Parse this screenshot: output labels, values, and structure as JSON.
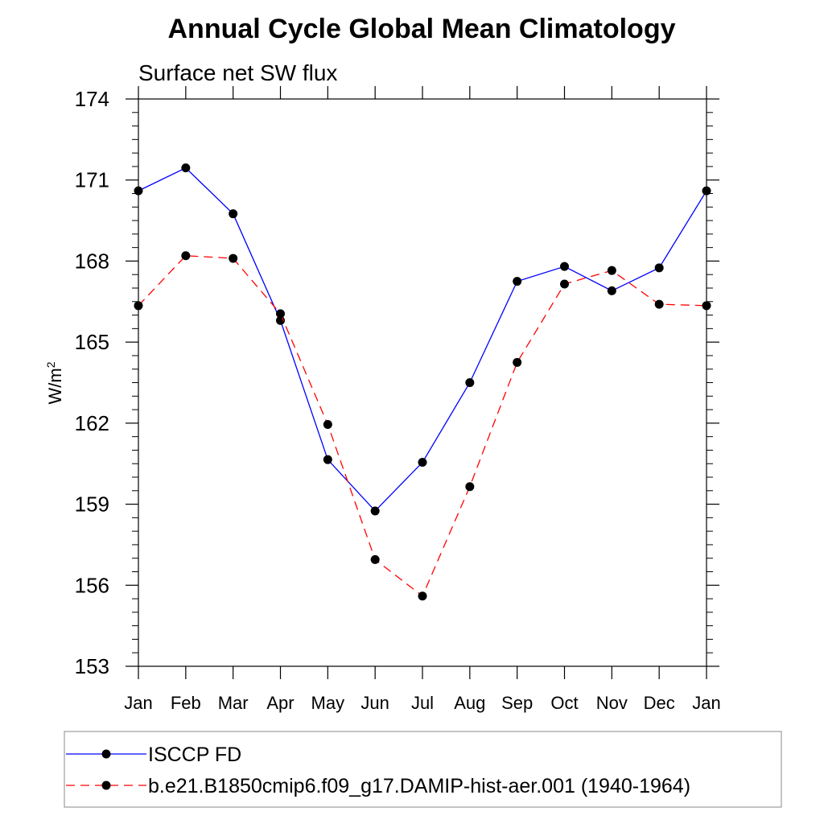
{
  "chart_data": {
    "type": "line",
    "title": "Annual Cycle Global Mean Climatology",
    "subtitle": "Surface net SW flux",
    "ylabel": "W/m",
    "ylabel_superscript": "2",
    "xlabel": "",
    "categories": [
      "Jan",
      "Feb",
      "Mar",
      "Apr",
      "May",
      "Jun",
      "Jul",
      "Aug",
      "Sep",
      "Oct",
      "Nov",
      "Dec",
      "Jan"
    ],
    "ylim": [
      153,
      174
    ],
    "yticks": [
      153,
      156,
      159,
      162,
      165,
      168,
      171,
      174
    ],
    "yticks_minor_step": 0.5,
    "grid": false,
    "legend_position": "bottom",
    "series": [
      {
        "name": "ISCCP FD",
        "color": "#0000ff",
        "line_style": "solid",
        "marker": "filled-circle",
        "values": [
          170.6,
          171.45,
          169.75,
          165.8,
          160.65,
          158.75,
          160.55,
          163.5,
          167.25,
          167.8,
          166.9,
          167.75,
          170.6
        ]
      },
      {
        "name": "b.e21.B1850cmip6.f09_g17.DAMIP-hist-aer.001 (1940-1964)",
        "color": "#ff0000",
        "line_style": "dashed",
        "marker": "filled-circle",
        "values": [
          166.35,
          168.2,
          168.1,
          166.05,
          161.95,
          156.95,
          155.6,
          159.65,
          164.25,
          167.15,
          167.65,
          166.4,
          166.35
        ]
      }
    ]
  }
}
